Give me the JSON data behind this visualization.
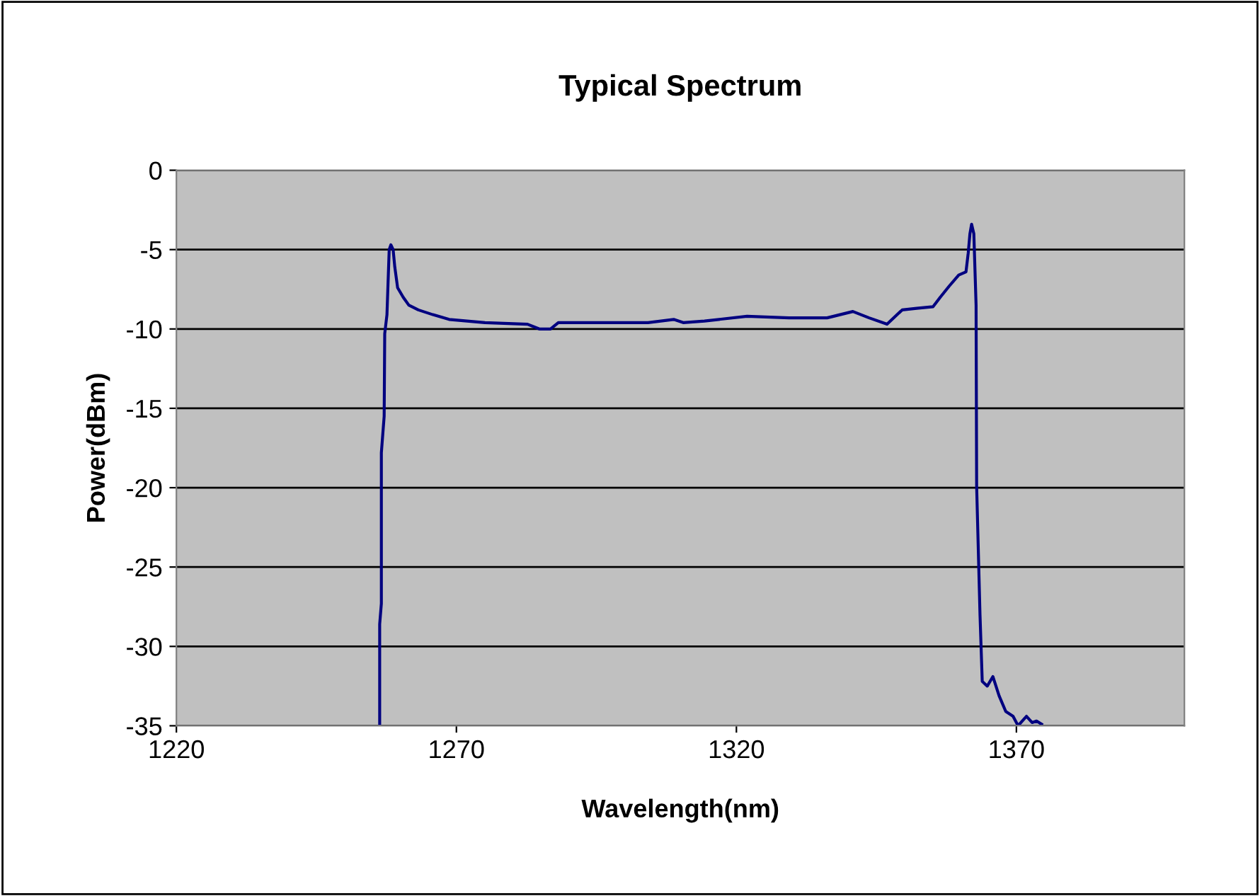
{
  "chart_data": {
    "type": "line",
    "title": "Typical Spectrum",
    "xlabel": "Wavelength(nm)",
    "ylabel": "Power(dBm)",
    "xlim": [
      1220,
      1400
    ],
    "xticks": [
      1220,
      1270,
      1320,
      1370
    ],
    "ylim": [
      -35,
      0
    ],
    "yticks": [
      -35,
      -30,
      -25,
      -20,
      -15,
      -10,
      -5,
      0
    ],
    "grid": "y",
    "legend": false,
    "series": [
      {
        "color": "#000080",
        "x": [
          1256.3,
          1256.3,
          1256.6,
          1256.6,
          1257.1,
          1257.2,
          1257.6,
          1258.0,
          1258.3,
          1258.7,
          1259.0,
          1259.5,
          1260.5,
          1261.5,
          1263.2,
          1265.8,
          1268.7,
          1275.1,
          1282.7,
          1284.8,
          1286.8,
          1288.2,
          1297.0,
          1304.2,
          1308.8,
          1310.5,
          1314.3,
          1321.9,
          1329.4,
          1336.2,
          1340.8,
          1343.7,
          1346.9,
          1349.6,
          1352.2,
          1355.1,
          1356.4,
          1358.0,
          1359.7,
          1361.0,
          1361.4,
          1361.7,
          1362.0,
          1362.4,
          1362.8,
          1362.9,
          1363.5,
          1363.9,
          1364.8,
          1365.8,
          1366.9,
          1368.1,
          1369.4,
          1370.3,
          1371.8,
          1372.8,
          1373.6,
          1374.5
        ],
        "values": [
          -35,
          -28.6,
          -27.3,
          -17.8,
          -15.5,
          -10.3,
          -9.1,
          -5.0,
          -4.7,
          -5.0,
          -6.1,
          -7.4,
          -8.0,
          -8.5,
          -8.8,
          -9.1,
          -9.4,
          -9.6,
          -9.7,
          -10.0,
          -10.0,
          -9.6,
          -9.6,
          -9.6,
          -9.4,
          -9.6,
          -9.5,
          -9.2,
          -9.3,
          -9.3,
          -8.9,
          -9.3,
          -9.7,
          -8.8,
          -8.7,
          -8.6,
          -8.0,
          -7.3,
          -6.6,
          -6.4,
          -5.2,
          -4.0,
          -3.4,
          -4.0,
          -8.5,
          -19.9,
          -28.0,
          -32.2,
          -32.5,
          -31.9,
          -33.1,
          -34.1,
          -34.4,
          -35,
          -34.4,
          -34.8,
          -34.7,
          -34.9
        ]
      }
    ]
  }
}
